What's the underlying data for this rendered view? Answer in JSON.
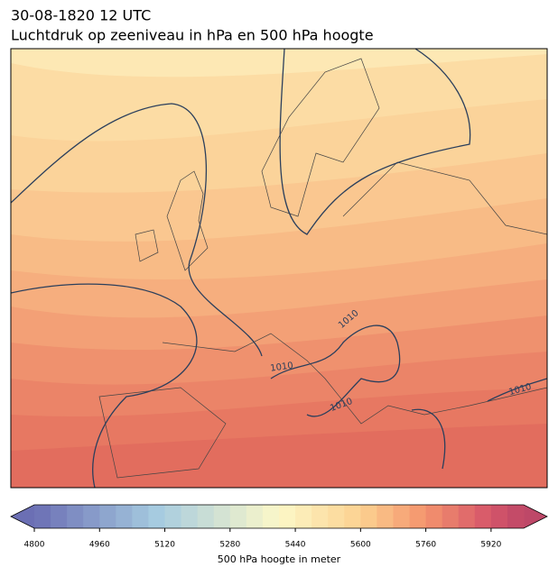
{
  "title": "30-08-1820 12 UTC",
  "subtitle": "Luchtdruk op zeeniveau in hPa en 500 hPa hoogte",
  "contour_labels": [
    "1010",
    "1010",
    "1010",
    "1010"
  ],
  "colorbar": {
    "label": "500 hPa hoogte in meter",
    "lim": [
      4800,
      6000
    ],
    "ticks": [
      4800,
      4960,
      5120,
      5280,
      5440,
      5600,
      5760,
      5920
    ]
  }
}
